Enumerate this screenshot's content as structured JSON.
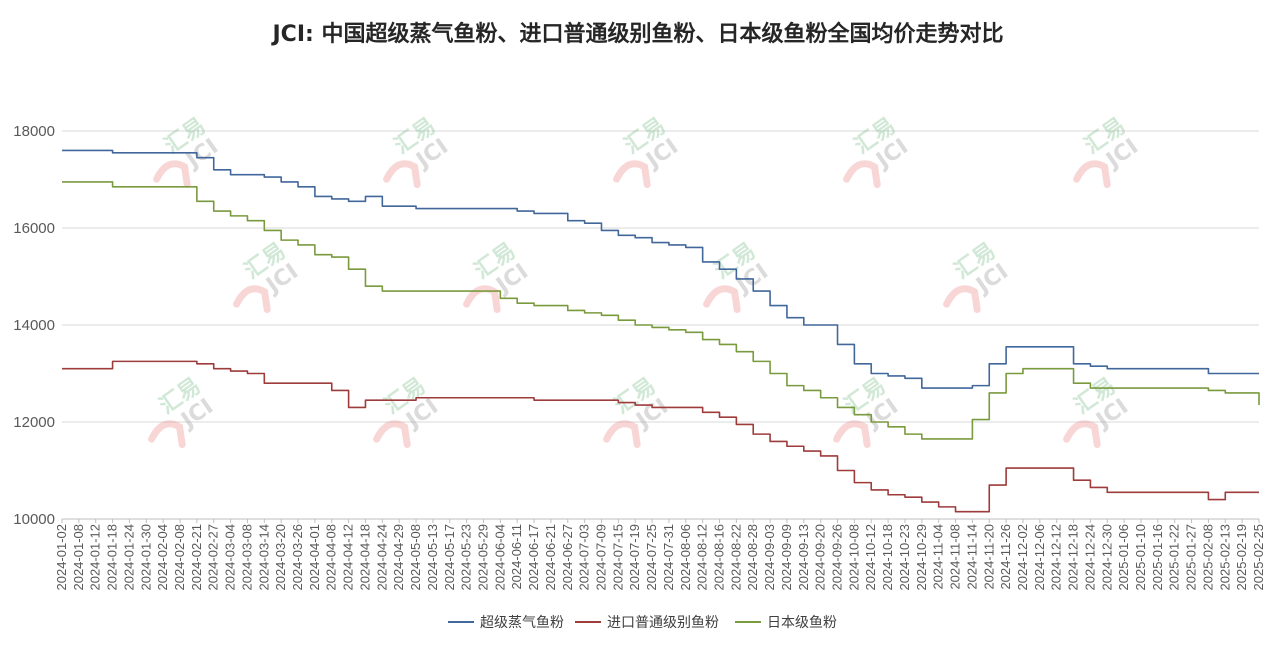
{
  "chart_data": {
    "type": "line",
    "title": "JCI: 中国超级蒸气鱼粉、进口普通级别鱼粉、日本级鱼粉全国均价走势对比",
    "xlabel": "",
    "ylabel": "",
    "ylim": [
      10000,
      18000
    ],
    "yticks": [
      "10000",
      "12000",
      "14000",
      "16000",
      "18000"
    ],
    "grid": "horizontal",
    "legend_position": "bottom",
    "watermark": {
      "cn": "汇易",
      "en": "JCI"
    },
    "x": [
      "2024-01-02",
      "2024-01-08",
      "2024-01-12",
      "2024-01-18",
      "2024-01-24",
      "2024-01-30",
      "2024-02-04",
      "2024-02-08",
      "2024-02-21",
      "2024-02-27",
      "2024-03-04",
      "2024-03-08",
      "2024-03-14",
      "2024-03-20",
      "2024-03-26",
      "2024-04-01",
      "2024-04-08",
      "2024-04-12",
      "2024-04-18",
      "2024-04-24",
      "2024-04-29",
      "2024-05-08",
      "2024-05-13",
      "2024-05-17",
      "2024-05-23",
      "2024-05-29",
      "2024-06-04",
      "2024-06-11",
      "2024-06-17",
      "2024-06-21",
      "2024-06-27",
      "2024-07-03",
      "2024-07-09",
      "2024-07-15",
      "2024-07-19",
      "2024-07-25",
      "2024-07-31",
      "2024-08-06",
      "2024-08-12",
      "2024-08-16",
      "2024-08-22",
      "2024-08-28",
      "2024-09-03",
      "2024-09-09",
      "2024-09-13",
      "2024-09-20",
      "2024-09-26",
      "2024-10-08",
      "2024-10-12",
      "2024-10-18",
      "2024-10-23",
      "2024-10-29",
      "2024-11-04",
      "2024-11-08",
      "2024-11-14",
      "2024-11-20",
      "2024-11-26",
      "2024-12-02",
      "2024-12-06",
      "2024-12-12",
      "2024-12-18",
      "2024-12-24",
      "2024-12-30",
      "2025-01-06",
      "2025-01-10",
      "2025-01-16",
      "2025-01-22",
      "2025-01-27",
      "2025-02-08",
      "2025-02-13",
      "2025-02-19",
      "2025-02-25"
    ],
    "series": [
      {
        "name": "超级蒸气鱼粉",
        "color": "#41679b",
        "values": [
          17600,
          17600,
          17600,
          17550,
          17550,
          17550,
          17550,
          17550,
          17450,
          17200,
          17100,
          17100,
          17050,
          16950,
          16850,
          16650,
          16600,
          16550,
          16650,
          16450,
          16450,
          16400,
          16400,
          16400,
          16400,
          16400,
          16400,
          16350,
          16300,
          16300,
          16150,
          16100,
          15950,
          15850,
          15800,
          15700,
          15650,
          15600,
          15300,
          15150,
          14950,
          14700,
          14400,
          14150,
          14000,
          14000,
          13600,
          13200,
          13000,
          12950,
          12900,
          12700,
          12700,
          12700,
          12750,
          13200,
          13550,
          13550,
          13550,
          13550,
          13200,
          13150,
          13100,
          13100,
          13100,
          13100,
          13100,
          13100,
          13000,
          13000,
          13000,
          13000
        ]
      },
      {
        "name": "进口普通级别鱼粉",
        "color": "#9e3b3b",
        "values": [
          13100,
          13100,
          13100,
          13250,
          13250,
          13250,
          13250,
          13250,
          13200,
          13100,
          13050,
          13000,
          12800,
          12800,
          12800,
          12800,
          12650,
          12300,
          12450,
          12450,
          12450,
          12500,
          12500,
          12500,
          12500,
          12500,
          12500,
          12500,
          12450,
          12450,
          12450,
          12450,
          12450,
          12400,
          12350,
          12300,
          12300,
          12300,
          12200,
          12100,
          11950,
          11750,
          11600,
          11500,
          11400,
          11300,
          11000,
          10750,
          10600,
          10500,
          10450,
          10350,
          10250,
          10150,
          10150,
          10700,
          11050,
          11050,
          11050,
          11050,
          10800,
          10650,
          10550,
          10550,
          10550,
          10550,
          10550,
          10550,
          10400,
          10550,
          10550,
          10550
        ]
      },
      {
        "name": "日本级鱼粉",
        "color": "#7a9a3e",
        "values": [
          16950,
          16950,
          16950,
          16850,
          16850,
          16850,
          16850,
          16850,
          16550,
          16350,
          16250,
          16150,
          15950,
          15750,
          15650,
          15450,
          15400,
          15150,
          14800,
          14700,
          14700,
          14700,
          14700,
          14700,
          14700,
          14700,
          14550,
          14450,
          14400,
          14400,
          14300,
          14250,
          14200,
          14100,
          14000,
          13950,
          13900,
          13850,
          13700,
          13600,
          13450,
          13250,
          13000,
          12750,
          12650,
          12500,
          12300,
          12150,
          12000,
          11900,
          11750,
          11650,
          11650,
          11650,
          12050,
          12600,
          13000,
          13100,
          13100,
          13100,
          12800,
          12700,
          12700,
          12700,
          12700,
          12700,
          12700,
          12700,
          12650,
          12600,
          12600,
          12350
        ]
      }
    ]
  }
}
